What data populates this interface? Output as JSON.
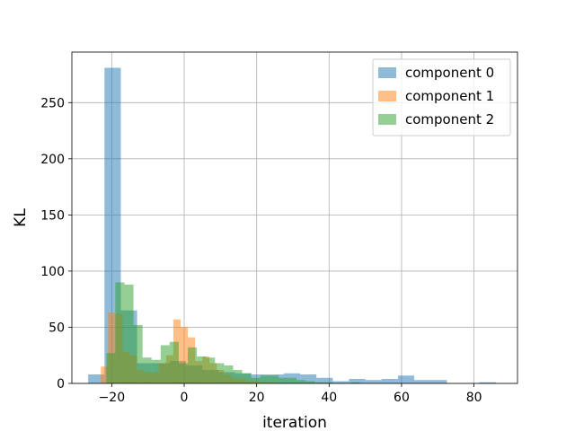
{
  "chart_data": {
    "type": "histogram",
    "title": "",
    "xlabel": "iteration",
    "ylabel": "KL",
    "xlim": [
      -31,
      92
    ],
    "ylim": [
      0,
      295
    ],
    "xticks": [
      -20,
      0,
      20,
      40,
      60,
      80
    ],
    "yticks": [
      0,
      50,
      100,
      150,
      200,
      250
    ],
    "grid": true,
    "legend_position": "top-right",
    "series": [
      {
        "name": "component 0",
        "color": "#1f77b4",
        "bins": [
          {
            "x0": -26.5,
            "x1": -22.0,
            "count": 8
          },
          {
            "x0": -22.0,
            "x1": -17.5,
            "count": 281
          },
          {
            "x0": -17.5,
            "x1": -13.0,
            "count": 65
          },
          {
            "x0": -13.0,
            "x1": -8.5,
            "count": 18
          },
          {
            "x0": -8.5,
            "x1": -4.0,
            "count": 18
          },
          {
            "x0": -4.0,
            "x1": 0.5,
            "count": 20
          },
          {
            "x0": 0.5,
            "x1": 5.0,
            "count": 16
          },
          {
            "x0": 5.0,
            "x1": 9.5,
            "count": 12
          },
          {
            "x0": 9.5,
            "x1": 14.0,
            "count": 10
          },
          {
            "x0": 14.0,
            "x1": 18.5,
            "count": 9
          },
          {
            "x0": 18.5,
            "x1": 23.0,
            "count": 8
          },
          {
            "x0": 23.0,
            "x1": 27.5,
            "count": 8
          },
          {
            "x0": 27.5,
            "x1": 32.0,
            "count": 9
          },
          {
            "x0": 32.0,
            "x1": 36.5,
            "count": 8
          },
          {
            "x0": 36.5,
            "x1": 41.0,
            "count": 5
          },
          {
            "x0": 41.0,
            "x1": 45.5,
            "count": 2
          },
          {
            "x0": 45.5,
            "x1": 50.0,
            "count": 4
          },
          {
            "x0": 50.0,
            "x1": 54.5,
            "count": 3
          },
          {
            "x0": 54.5,
            "x1": 59.0,
            "count": 4
          },
          {
            "x0": 59.0,
            "x1": 63.5,
            "count": 7
          },
          {
            "x0": 63.5,
            "x1": 68.0,
            "count": 3
          },
          {
            "x0": 68.0,
            "x1": 72.5,
            "count": 3
          },
          {
            "x0": 72.5,
            "x1": 77.0,
            "count": 0
          },
          {
            "x0": 77.0,
            "x1": 81.5,
            "count": 0
          },
          {
            "x0": 81.5,
            "x1": 86.0,
            "count": 1
          }
        ]
      },
      {
        "name": "component 1",
        "color": "#ff7f0e",
        "bins": [
          {
            "x0": -23.0,
            "x1": -21.0,
            "count": 15
          },
          {
            "x0": -21.0,
            "x1": -19.0,
            "count": 63
          },
          {
            "x0": -19.0,
            "x1": -17.0,
            "count": 62
          },
          {
            "x0": -17.0,
            "x1": -15.0,
            "count": 28
          },
          {
            "x0": -15.0,
            "x1": -13.0,
            "count": 25
          },
          {
            "x0": -13.0,
            "x1": -11.0,
            "count": 12
          },
          {
            "x0": -11.0,
            "x1": -9.0,
            "count": 10
          },
          {
            "x0": -9.0,
            "x1": -7.0,
            "count": 10
          },
          {
            "x0": -7.0,
            "x1": -5.0,
            "count": 18
          },
          {
            "x0": -5.0,
            "x1": -3.0,
            "count": 25
          },
          {
            "x0": -3.0,
            "x1": -1.0,
            "count": 57
          },
          {
            "x0": -1.0,
            "x1": 1.0,
            "count": 50
          },
          {
            "x0": 1.0,
            "x1": 3.0,
            "count": 41
          },
          {
            "x0": 3.0,
            "x1": 5.0,
            "count": 20
          },
          {
            "x0": 5.0,
            "x1": 7.0,
            "count": 24
          },
          {
            "x0": 7.0,
            "x1": 9.0,
            "count": 18
          },
          {
            "x0": 9.0,
            "x1": 11.0,
            "count": 12
          },
          {
            "x0": 11.0,
            "x1": 13.0,
            "count": 8
          },
          {
            "x0": 13.0,
            "x1": 15.0,
            "count": 5
          },
          {
            "x0": 15.0,
            "x1": 17.0,
            "count": 4
          },
          {
            "x0": 17.0,
            "x1": 19.0,
            "count": 2
          },
          {
            "x0": 19.0,
            "x1": 21.0,
            "count": 2
          },
          {
            "x0": 21.0,
            "x1": 23.0,
            "count": 1
          },
          {
            "x0": 23.0,
            "x1": 25.0,
            "count": 1
          }
        ]
      },
      {
        "name": "component 2",
        "color": "#2ca02c",
        "bins": [
          {
            "x0": -21.5,
            "x1": -19.0,
            "count": 27
          },
          {
            "x0": -19.0,
            "x1": -16.5,
            "count": 90
          },
          {
            "x0": -16.5,
            "x1": -14.0,
            "count": 88
          },
          {
            "x0": -14.0,
            "x1": -11.5,
            "count": 52
          },
          {
            "x0": -11.5,
            "x1": -9.0,
            "count": 23
          },
          {
            "x0": -9.0,
            "x1": -6.5,
            "count": 21
          },
          {
            "x0": -6.5,
            "x1": -4.0,
            "count": 34
          },
          {
            "x0": -4.0,
            "x1": -1.5,
            "count": 37
          },
          {
            "x0": -1.5,
            "x1": 1.0,
            "count": 18
          },
          {
            "x0": 1.0,
            "x1": 3.5,
            "count": 32
          },
          {
            "x0": 3.5,
            "x1": 6.0,
            "count": 24
          },
          {
            "x0": 6.0,
            "x1": 8.5,
            "count": 23
          },
          {
            "x0": 8.5,
            "x1": 11.0,
            "count": 18
          },
          {
            "x0": 11.0,
            "x1": 13.5,
            "count": 16
          },
          {
            "x0": 13.5,
            "x1": 16.0,
            "count": 12
          },
          {
            "x0": 16.0,
            "x1": 18.5,
            "count": 9
          },
          {
            "x0": 18.5,
            "x1": 21.0,
            "count": 5
          },
          {
            "x0": 21.0,
            "x1": 23.5,
            "count": 7
          },
          {
            "x0": 23.5,
            "x1": 26.0,
            "count": 7
          },
          {
            "x0": 26.0,
            "x1": 28.5,
            "count": 5
          },
          {
            "x0": 28.5,
            "x1": 31.0,
            "count": 5
          },
          {
            "x0": 31.0,
            "x1": 33.5,
            "count": 3
          },
          {
            "x0": 33.5,
            "x1": 36.0,
            "count": 2
          },
          {
            "x0": 36.0,
            "x1": 38.5,
            "count": 1
          },
          {
            "x0": 38.5,
            "x1": 41.0,
            "count": 1
          },
          {
            "x0": 41.0,
            "x1": 43.5,
            "count": 0
          },
          {
            "x0": 43.5,
            "x1": 46.0,
            "count": 0
          },
          {
            "x0": 46.0,
            "x1": 48.5,
            "count": 1
          }
        ]
      }
    ]
  }
}
